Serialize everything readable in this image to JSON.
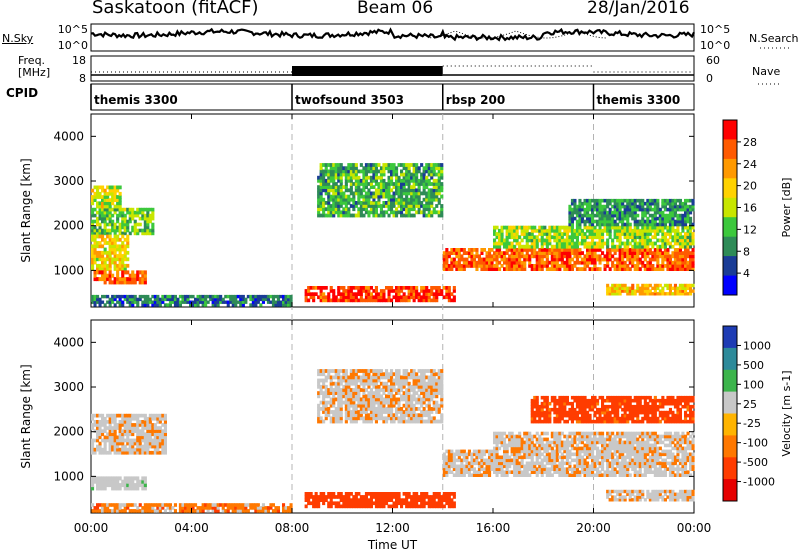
{
  "header": {
    "station": "Saskatoon (fitACF)",
    "beam": "Beam 06",
    "date": "28/Jan/2016"
  },
  "noise_panel": {
    "left_label": "N.Sky",
    "left_ticks": [
      "10^5",
      "10^0"
    ],
    "right_label": "N.Search",
    "right_ticks": [
      "10^5",
      "10^0"
    ]
  },
  "freq_panel": {
    "left_label_top": "Freq.",
    "left_label_bottom": "[MHz]",
    "left_ticks": [
      "18",
      "8"
    ],
    "right_label": "Nave",
    "right_ticks": [
      "60",
      "0"
    ]
  },
  "cpid": {
    "label": "CPID",
    "segments": [
      {
        "start_hour": 0,
        "end_hour": 8,
        "name": "themis 3300"
      },
      {
        "start_hour": 8,
        "end_hour": 14,
        "name": "twofsound 3503"
      },
      {
        "start_hour": 14,
        "end_hour": 20,
        "name": "rbsp 200"
      },
      {
        "start_hour": 20,
        "end_hour": 24,
        "name": "themis 3300"
      }
    ]
  },
  "x_axis": {
    "label": "Time UT",
    "ticks": [
      "00:00",
      "04:00",
      "08:00",
      "12:00",
      "16:00",
      "20:00",
      "00:00"
    ]
  },
  "power_panel": {
    "ylabel": "Slant Range [km]",
    "yticks": [
      "4000",
      "3000",
      "2000",
      "1000"
    ],
    "colorbar_label": "Power [dB]",
    "colorbar_ticks": [
      "28",
      "24",
      "20",
      "16",
      "12",
      "8",
      "4"
    ],
    "colorbar_colors": [
      "#ff0000",
      "#ff5a00",
      "#ff9900",
      "#ffd200",
      "#c8e600",
      "#3cc83c",
      "#2e8b57",
      "#1a3c96",
      "#0000ff"
    ]
  },
  "velocity_panel": {
    "ylabel": "Slant Range [km]",
    "yticks": [
      "4000",
      "3000",
      "2000",
      "1000"
    ],
    "colorbar_label": "Velocity [m s-1]",
    "colorbar_ticks": [
      "1000",
      "500",
      "100",
      "25",
      "-25",
      "-100",
      "-500",
      "-1000"
    ],
    "colorbar_colors": [
      "#1e3cb4",
      "#2d8a9a",
      "#3cb44b",
      "#c8c8c8",
      "#ffb400",
      "#ff7800",
      "#ff3c00",
      "#e60000"
    ]
  },
  "chart_data": [
    {
      "type": "heatmap",
      "title": "Power [dB]",
      "xlabel": "Time UT",
      "ylabel": "Slant Range [km]",
      "xlim": [
        0,
        24
      ],
      "ylim": [
        180,
        4500
      ],
      "zlim": [
        0,
        30
      ],
      "regions": [
        {
          "t": [
            0.0,
            2.5
          ],
          "r": [
            1800,
            2400
          ],
          "power": 12
        },
        {
          "t": [
            0.0,
            1.2
          ],
          "r": [
            2400,
            2900
          ],
          "power": 16
        },
        {
          "t": [
            0.0,
            1.5
          ],
          "r": [
            1000,
            1800
          ],
          "power": 18
        },
        {
          "t": [
            0.1,
            2.2
          ],
          "r": [
            700,
            1000
          ],
          "power": 26
        },
        {
          "t": [
            0.0,
            8.0
          ],
          "r": [
            200,
            450
          ],
          "power": 6
        },
        {
          "t": [
            8.5,
            14.5
          ],
          "r": [
            300,
            650
          ],
          "power": 28
        },
        {
          "t": [
            9.0,
            14.0
          ],
          "r": [
            2200,
            3400
          ],
          "power": 10
        },
        {
          "t": [
            14.0,
            24.0
          ],
          "r": [
            1000,
            1500
          ],
          "power": 26
        },
        {
          "t": [
            16.0,
            24.0
          ],
          "r": [
            1500,
            2000
          ],
          "power": 14
        },
        {
          "t": [
            19.0,
            24.0
          ],
          "r": [
            2000,
            2600
          ],
          "power": 8
        },
        {
          "t": [
            20.5,
            24.0
          ],
          "r": [
            450,
            700
          ],
          "power": 20
        }
      ]
    },
    {
      "type": "heatmap",
      "title": "Velocity [m s-1]",
      "xlabel": "Time UT",
      "ylabel": "Slant Range [km]",
      "xlim": [
        0,
        24
      ],
      "ylim": [
        180,
        4500
      ],
      "zlim": [
        -1000,
        1000
      ],
      "regions": [
        {
          "t": [
            0.0,
            3.0
          ],
          "r": [
            1500,
            2400
          ],
          "velocity": 0
        },
        {
          "t": [
            0.0,
            2.2
          ],
          "r": [
            700,
            1000
          ],
          "velocity": 50
        },
        {
          "t": [
            0.0,
            8.0
          ],
          "r": [
            200,
            400
          ],
          "velocity": -60
        },
        {
          "t": [
            8.5,
            14.5
          ],
          "r": [
            300,
            650
          ],
          "velocity": -200
        },
        {
          "t": [
            9.0,
            14.0
          ],
          "r": [
            2200,
            3400
          ],
          "velocity": 0
        },
        {
          "t": [
            14.0,
            24.0
          ],
          "r": [
            1000,
            1600
          ],
          "velocity": 0
        },
        {
          "t": [
            16.0,
            24.0
          ],
          "r": [
            1600,
            2000
          ],
          "velocity": 0
        },
        {
          "t": [
            17.5,
            24.0
          ],
          "r": [
            2200,
            2800
          ],
          "velocity": -150
        },
        {
          "t": [
            20.5,
            24.0
          ],
          "r": [
            450,
            700
          ],
          "velocity": 0
        }
      ]
    }
  ]
}
